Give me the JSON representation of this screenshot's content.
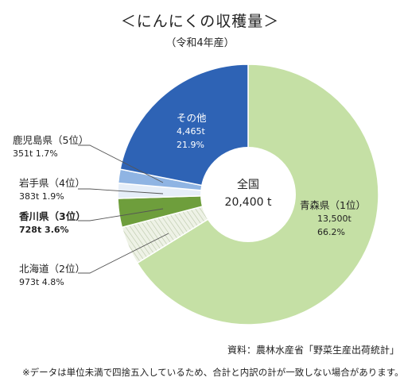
{
  "title": "＜にんにくの収穫量＞",
  "subtitle": "（令和4年産）",
  "source": "資料：農林水産省「野菜生産出荷統計」",
  "note": "※データは単位未満で四捨五入しているため、合計と内訳の計が一致しない場合があります。",
  "center": {
    "label": "全国",
    "value": "20,400 t"
  },
  "chart_data": {
    "type": "pie",
    "donut": true,
    "total": 20400,
    "unit": "t",
    "slices": [
      {
        "name": "青森県（1位）",
        "value": 13500,
        "value_label": "13,500t",
        "pct_label": "66.2%",
        "color": "#c5e0a5"
      },
      {
        "name": "北海道（2位）",
        "value": 973,
        "value_label": "973t",
        "pct_label": "4.8%",
        "color": "#e8eee0"
      },
      {
        "name": "香川県（3位）",
        "value": 728,
        "value_label": "728t",
        "pct_label": "3.6%",
        "color": "#6e9e3c"
      },
      {
        "name": "岩手県（4位）",
        "value": 383,
        "value_label": "383t",
        "pct_label": "1.9%",
        "color": "#e6eef8"
      },
      {
        "name": "鹿児島県（5位）",
        "value": 351,
        "value_label": "351t",
        "pct_label": "1.7%",
        "color": "#8fb4e3"
      },
      {
        "name": "その他",
        "value": 4465,
        "value_label": "4,465t",
        "pct_label": "21.9%",
        "color": "#2e63b5"
      }
    ]
  },
  "labels": {
    "aomori": {
      "name": "青森県（1位）",
      "value": "13,500t",
      "pct": "66.2%"
    },
    "hokkaido": {
      "name": "北海道（2位）",
      "line2": "973t  4.8%"
    },
    "kagawa": {
      "name": "香川県（3位）",
      "line2": "728t  3.6%"
    },
    "iwate": {
      "name": "岩手県（4位）",
      "line2": "383t  1.9%"
    },
    "kagoshima": {
      "name": "鹿児島県（5位）",
      "line2": "351t  1.7%"
    },
    "other": {
      "name": "その他",
      "value": "4,465t",
      "pct": "21.9%"
    }
  }
}
